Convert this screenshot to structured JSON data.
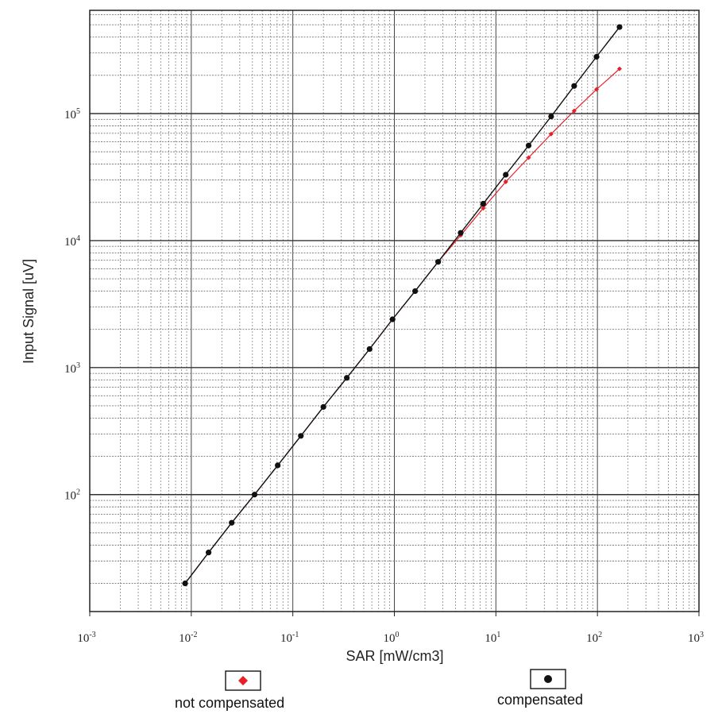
{
  "chart_data": {
    "type": "scatter",
    "x_scale": "log",
    "y_scale": "log",
    "xlim": [
      0.001,
      1000
    ],
    "ylim": [
      12,
      650000
    ],
    "grid": true,
    "xlabel": "SAR [mW/cm3]",
    "ylabel": "Input Signal [uV]",
    "x_ticks": [
      {
        "base": "10",
        "exp": "-3",
        "value": 0.001
      },
      {
        "base": "10",
        "exp": "-2",
        "value": 0.01
      },
      {
        "base": "10",
        "exp": "-1",
        "value": 0.1
      },
      {
        "base": "10",
        "exp": "0",
        "value": 1
      },
      {
        "base": "10",
        "exp": "1",
        "value": 10
      },
      {
        "base": "10",
        "exp": "2",
        "value": 100
      },
      {
        "base": "10",
        "exp": "3",
        "value": 1000
      }
    ],
    "y_ticks": [
      {
        "base": "10",
        "exp": "2",
        "value": 100
      },
      {
        "base": "10",
        "exp": "3",
        "value": 1000
      },
      {
        "base": "10",
        "exp": "4",
        "value": 10000
      },
      {
        "base": "10",
        "exp": "5",
        "value": 100000
      }
    ],
    "legend_placement": "bottom",
    "series": [
      {
        "name": "compensated",
        "color": "#111111",
        "marker": "circle",
        "points": [
          [
            0.0087,
            20
          ],
          [
            0.0148,
            35
          ],
          [
            0.025,
            60
          ],
          [
            0.042,
            100
          ],
          [
            0.071,
            170
          ],
          [
            0.12,
            290
          ],
          [
            0.2,
            490
          ],
          [
            0.34,
            830
          ],
          [
            0.57,
            1400
          ],
          [
            0.96,
            2400
          ],
          [
            1.6,
            4000
          ],
          [
            2.7,
            6800
          ],
          [
            4.5,
            11500
          ],
          [
            7.5,
            19500
          ],
          [
            12.5,
            33000
          ],
          [
            21,
            56000
          ],
          [
            35,
            95000
          ],
          [
            59,
            165000
          ],
          [
            98,
            280000
          ],
          [
            165,
            480000
          ]
        ]
      },
      {
        "name": "not compensated",
        "color": "#e8202a",
        "marker": "diamond",
        "points": [
          [
            0.0087,
            20
          ],
          [
            0.0148,
            35
          ],
          [
            0.025,
            60
          ],
          [
            0.042,
            100
          ],
          [
            0.071,
            170
          ],
          [
            0.12,
            290
          ],
          [
            0.2,
            490
          ],
          [
            0.34,
            830
          ],
          [
            0.57,
            1400
          ],
          [
            0.96,
            2400
          ],
          [
            1.6,
            4000
          ],
          [
            2.7,
            6800
          ],
          [
            4.5,
            11000
          ],
          [
            7.5,
            18000
          ],
          [
            12.5,
            29000
          ],
          [
            21,
            45000
          ],
          [
            35,
            69000
          ],
          [
            59,
            105000
          ],
          [
            98,
            155000
          ],
          [
            165,
            225000
          ]
        ]
      }
    ]
  }
}
